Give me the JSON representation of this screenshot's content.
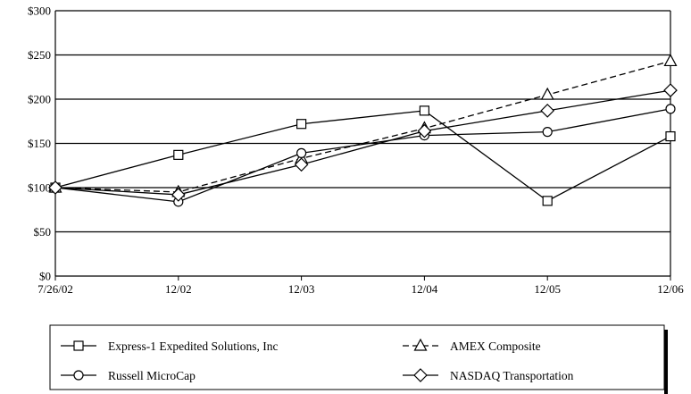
{
  "chart_data": {
    "type": "line",
    "x": [
      "7/26/02",
      "12/02",
      "12/03",
      "12/04",
      "12/05",
      "12/06"
    ],
    "ylim": [
      0,
      300
    ],
    "yticks": [
      0,
      50,
      100,
      150,
      200,
      250,
      300
    ],
    "ytick_labels": [
      "$0",
      "$50",
      "$100",
      "$150",
      "$200",
      "$250",
      "$300"
    ],
    "grid": "horizontal",
    "legend": "bottom",
    "series": [
      {
        "name": "Express-1 Expedited Solutions, Inc",
        "marker": "square",
        "dash": "solid",
        "values": [
          100,
          137,
          172,
          187,
          85,
          158
        ]
      },
      {
        "name": "AMEX Composite",
        "marker": "triangle",
        "dash": "dashed",
        "values": [
          100,
          95,
          133,
          167,
          205,
          243
        ]
      },
      {
        "name": "Russell MicroCap",
        "marker": "circle",
        "dash": "solid",
        "values": [
          100,
          84,
          139,
          159,
          163,
          189
        ]
      },
      {
        "name": "NASDAQ Transportation",
        "marker": "diamond",
        "dash": "solid",
        "values": [
          100,
          92,
          126,
          164,
          187,
          210
        ]
      }
    ]
  }
}
